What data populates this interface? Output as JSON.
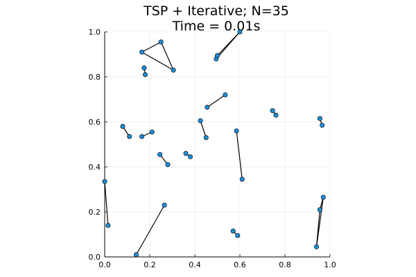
{
  "chart_data": {
    "type": "scatter",
    "title_lines": [
      "TSP + Iterative; N=35",
      "Time = 0.01s"
    ],
    "xlabel": "",
    "ylabel": "",
    "xlim": [
      0,
      1
    ],
    "ylim": [
      0,
      1
    ],
    "x_ticks": [
      "0.0",
      "0.2",
      "0.4",
      "0.6",
      "0.8",
      "1.0"
    ],
    "y_ticks": [
      "0.0",
      "0.2",
      "0.4",
      "0.6",
      "0.8",
      "1.0"
    ],
    "grid": true,
    "legend": "none",
    "point_color": "#1f8dd6",
    "line_color": "#000000",
    "points": [
      [
        0.165,
        0.91
      ],
      [
        0.25,
        0.955
      ],
      [
        0.305,
        0.83
      ],
      [
        0.175,
        0.84
      ],
      [
        0.18,
        0.81
      ],
      [
        0.495,
        0.88
      ],
      [
        0.5,
        0.895
      ],
      [
        0.6,
        1.0
      ],
      [
        0.455,
        0.665
      ],
      [
        0.535,
        0.72
      ],
      [
        0.745,
        0.65
      ],
      [
        0.76,
        0.63
      ],
      [
        0.955,
        0.615
      ],
      [
        0.965,
        0.585
      ],
      [
        0.08,
        0.58
      ],
      [
        0.11,
        0.535
      ],
      [
        0.165,
        0.535
      ],
      [
        0.21,
        0.555
      ],
      [
        0.425,
        0.605
      ],
      [
        0.45,
        0.53
      ],
      [
        0.585,
        0.56
      ],
      [
        0.61,
        0.345
      ],
      [
        0.245,
        0.455
      ],
      [
        0.28,
        0.41
      ],
      [
        0.36,
        0.46
      ],
      [
        0.38,
        0.445
      ],
      [
        0.0,
        0.335
      ],
      [
        0.015,
        0.14
      ],
      [
        0.265,
        0.23
      ],
      [
        0.14,
        0.01
      ],
      [
        0.57,
        0.115
      ],
      [
        0.59,
        0.095
      ],
      [
        0.94,
        0.045
      ],
      [
        0.955,
        0.21
      ],
      [
        0.97,
        0.265
      ]
    ],
    "segments": [
      [
        [
          0.165,
          0.91
        ],
        [
          0.25,
          0.955
        ]
      ],
      [
        [
          0.25,
          0.955
        ],
        [
          0.305,
          0.83
        ]
      ],
      [
        [
          0.305,
          0.83
        ],
        [
          0.165,
          0.91
        ]
      ],
      [
        [
          0.175,
          0.84
        ],
        [
          0.18,
          0.81
        ]
      ],
      [
        [
          0.495,
          0.88
        ],
        [
          0.5,
          0.895
        ]
      ],
      [
        [
          0.5,
          0.895
        ],
        [
          0.6,
          1.0
        ]
      ],
      [
        [
          0.495,
          0.88
        ],
        [
          0.6,
          1.0
        ]
      ],
      [
        [
          0.455,
          0.665
        ],
        [
          0.535,
          0.72
        ]
      ],
      [
        [
          0.745,
          0.65
        ],
        [
          0.76,
          0.63
        ]
      ],
      [
        [
          0.955,
          0.615
        ],
        [
          0.965,
          0.585
        ]
      ],
      [
        [
          0.08,
          0.58
        ],
        [
          0.11,
          0.535
        ]
      ],
      [
        [
          0.165,
          0.535
        ],
        [
          0.21,
          0.555
        ]
      ],
      [
        [
          0.425,
          0.605
        ],
        [
          0.45,
          0.53
        ]
      ],
      [
        [
          0.585,
          0.56
        ],
        [
          0.61,
          0.345
        ]
      ],
      [
        [
          0.245,
          0.455
        ],
        [
          0.28,
          0.41
        ]
      ],
      [
        [
          0.36,
          0.46
        ],
        [
          0.38,
          0.445
        ]
      ],
      [
        [
          0.0,
          0.335
        ],
        [
          0.015,
          0.14
        ]
      ],
      [
        [
          0.265,
          0.23
        ],
        [
          0.14,
          0.01
        ]
      ],
      [
        [
          0.57,
          0.115
        ],
        [
          0.59,
          0.095
        ]
      ],
      [
        [
          0.94,
          0.045
        ],
        [
          0.955,
          0.21
        ]
      ],
      [
        [
          0.955,
          0.21
        ],
        [
          0.97,
          0.265
        ]
      ],
      [
        [
          0.94,
          0.045
        ],
        [
          0.97,
          0.265
        ]
      ]
    ]
  }
}
